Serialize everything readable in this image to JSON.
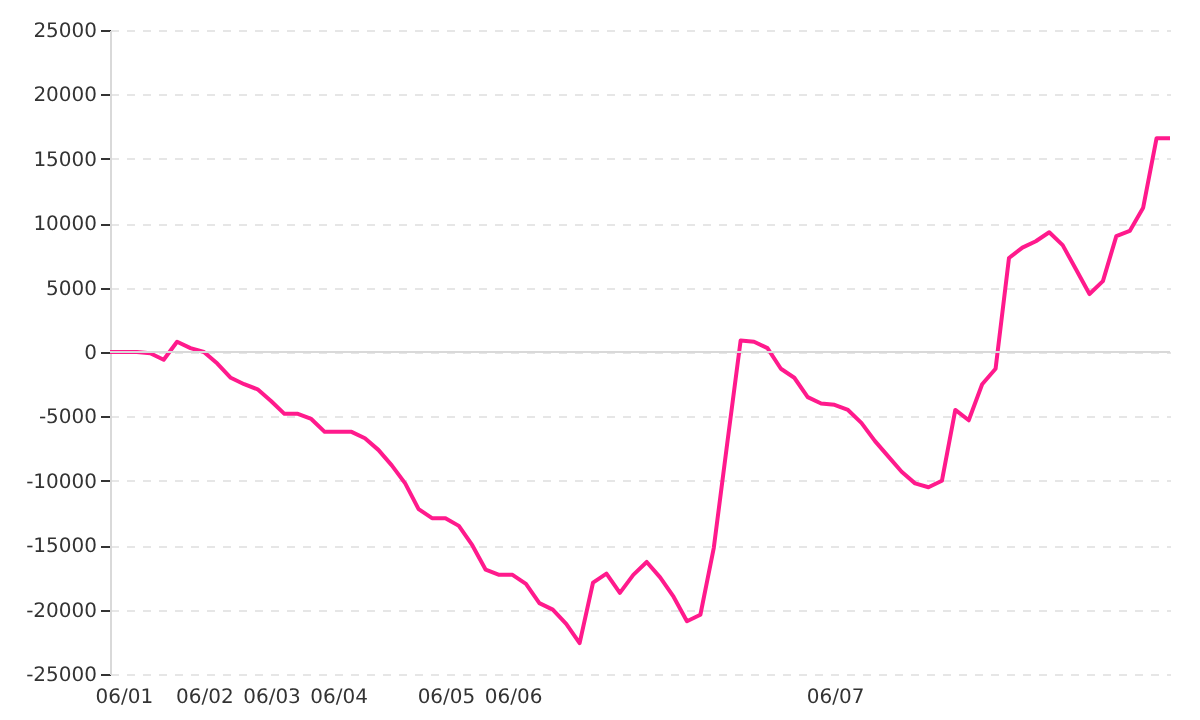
{
  "chart_data": {
    "type": "line",
    "categories": [
      null,
      "06/01",
      null,
      null,
      null,
      null,
      null,
      "06/02",
      null,
      null,
      null,
      null,
      "06/03",
      null,
      null,
      null,
      null,
      "06/04",
      null,
      null,
      null,
      null,
      null,
      null,
      null,
      "06/05",
      null,
      null,
      null,
      null,
      "06/06",
      null,
      null,
      null,
      null,
      null,
      null,
      null,
      null,
      null,
      null,
      null,
      null,
      null,
      null,
      null,
      null,
      null,
      null,
      null,
      null,
      null,
      null,
      null,
      "06/07",
      null,
      null,
      null,
      null,
      null,
      null,
      null,
      null,
      null,
      null,
      null,
      null,
      null,
      null,
      null,
      null,
      null,
      null,
      null,
      null,
      null,
      null,
      null,
      null,
      null
    ],
    "series": [
      {
        "color": "#ff1a8c",
        "values": [
          0,
          0,
          0,
          -100,
          -600,
          800,
          300,
          0,
          -900,
          -2000,
          -2500,
          -2900,
          -3800,
          -4800,
          -4800,
          -5200,
          -6200,
          -6200,
          -6200,
          -6700,
          -7600,
          -8800,
          -10200,
          -12200,
          -12900,
          -12900,
          -13500,
          -15000,
          -16900,
          -17300,
          -17300,
          -18000,
          -19500,
          -20000,
          -21100,
          -22600,
          -17900,
          -17200,
          -18700,
          -17300,
          -16300,
          -17500,
          -19000,
          -20900,
          -20400,
          -15200,
          -7100,
          900,
          800,
          300,
          -1300,
          -2000,
          -3500,
          -4000,
          -4100,
          -4500,
          -5500,
          -6900,
          -8100,
          -9300,
          -10200,
          -10500,
          -10000,
          -4500,
          -5300,
          -2500,
          -1300,
          7300,
          8100,
          8600,
          9300,
          8300,
          6400,
          4500,
          5500,
          9000,
          9400,
          11200,
          16600,
          16600
        ]
      }
    ],
    "ylim": [
      -25000,
      25000
    ],
    "yticks": [
      -25000,
      -20000,
      -15000,
      -10000,
      -5000,
      0,
      5000,
      10000,
      15000,
      20000,
      25000
    ],
    "grid": "y",
    "marker": "none",
    "line_style": "solid",
    "ref_lines": [
      {
        "axis": "y",
        "value": 0,
        "color": "#d9d9d9"
      }
    ]
  }
}
